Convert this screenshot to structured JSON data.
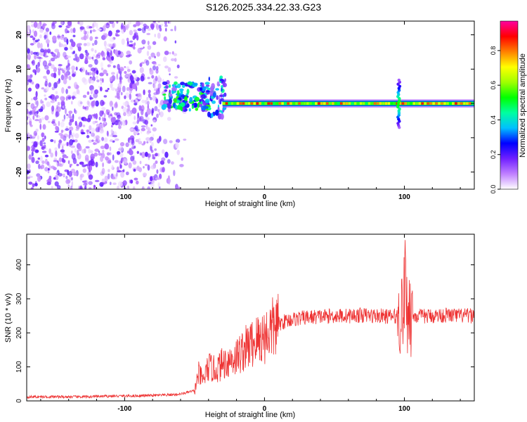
{
  "figure_title": "S126.2025.334.22.33.G23",
  "chart_data": [
    {
      "type": "heatmap",
      "title": "S126.2025.334.22.33.G23",
      "xlabel": "Height of straight line (km)",
      "ylabel": "Frequency (Hz)",
      "xlim": [
        -170,
        150
      ],
      "ylim": [
        -25,
        24
      ],
      "x_ticks": [
        -100,
        0,
        100
      ],
      "x_tick_labels": [
        "-100",
        "0",
        "100"
      ],
      "y_ticks": [
        -20,
        -10,
        0,
        10,
        20
      ],
      "y_tick_labels": [
        "-20",
        "-10",
        "0",
        "10",
        "20"
      ],
      "colorbar": {
        "label": "Normalized spectral amplitude",
        "range": [
          0,
          0.97
        ],
        "ticks": [
          0,
          0.2,
          0.4,
          0.6,
          0.8
        ],
        "tick_labels": [
          "0.0",
          "0.2",
          "0.4",
          "0.6",
          "0.8"
        ],
        "colors": [
          "#ffffff",
          "#c080ff",
          "#7020ff",
          "#0000ff",
          "#00c0ff",
          "#00ffa0",
          "#00ff00",
          "#a0ff00",
          "#ffff00",
          "#ff8000",
          "#ff0000",
          "#ff00a0"
        ]
      },
      "regions": [
        {
          "name": "noise",
          "x_range": [
            -170,
            -55
          ],
          "freq_range": [
            -25,
            24
          ],
          "amplitude": 0.1
        },
        {
          "name": "onset-cluster",
          "x_range": [
            -72,
            -40
          ],
          "freq_range": [
            -2,
            6
          ],
          "amplitude": 0.35
        },
        {
          "name": "central-line",
          "x_range": [
            -30,
            150
          ],
          "freq": 0,
          "amplitude": 0.85
        },
        {
          "name": "spike",
          "x": 96,
          "freq_range": [
            -7,
            7
          ],
          "amplitude": 0.5
        }
      ]
    },
    {
      "type": "line",
      "xlabel": "Height of straight line (km)",
      "ylabel": "SNR (10 * v/v)",
      "xlim": [
        -170,
        150
      ],
      "ylim": [
        0,
        490
      ],
      "x_ticks": [
        -100,
        0,
        100
      ],
      "x_tick_labels": [
        "-100",
        "0",
        "100"
      ],
      "y_ticks": [
        0,
        100,
        200,
        300,
        400
      ],
      "y_tick_labels": [
        "0",
        "100",
        "200",
        "300",
        "400"
      ],
      "series": [
        {
          "name": "SNR",
          "color": "#ee3333",
          "x": [
            -170,
            -150,
            -130,
            -110,
            -90,
            -70,
            -60,
            -50,
            -47,
            -44,
            -40,
            -35,
            -30,
            -25,
            -20,
            -15,
            -10,
            -5,
            0,
            5,
            10,
            15,
            20,
            30,
            40,
            50,
            60,
            70,
            80,
            90,
            95,
            98,
            100,
            101,
            102,
            103,
            104,
            105,
            108,
            112,
            120,
            130,
            140,
            150
          ],
          "y": [
            12,
            12,
            12,
            14,
            15,
            17,
            20,
            30,
            80,
            60,
            100,
            90,
            110,
            120,
            130,
            150,
            165,
            180,
            190,
            210,
            225,
            235,
            240,
            245,
            248,
            250,
            250,
            252,
            250,
            248,
            250,
            260,
            300,
            450,
            180,
            320,
            260,
            250,
            250,
            248,
            250,
            252,
            250,
            250
          ]
        }
      ]
    }
  ]
}
